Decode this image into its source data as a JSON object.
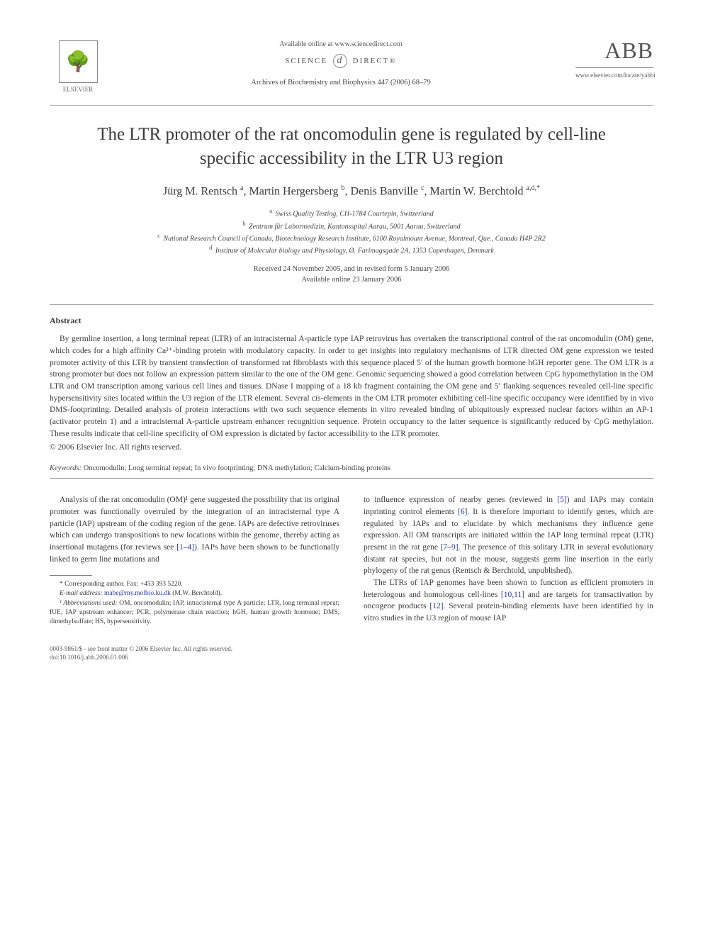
{
  "header": {
    "available_online": "Available online at www.sciencedirect.com",
    "science_direct_left": "SCIENCE",
    "science_direct_right": "DIRECT®",
    "journal_ref": "Archives of Biochemistry and Biophysics 447 (2006) 68–79",
    "elsevier_label": "ELSEVIER",
    "abb_label": "ABB",
    "locate_url": "www.elsevier.com/locate/yabbi"
  },
  "title": "The LTR promoter of the rat oncomodulin gene is regulated by cell-line specific accessibility in the LTR U3 region",
  "authors_html": "Jürg M. Rentsch <sup>a</sup>, Martin Hergersberg <sup>b</sup>, Denis Banville <sup>c</sup>, Martin W. Berchtold <sup>a,d,*</sup>",
  "affiliations": [
    {
      "sup": "a",
      "text": "Swiss Quality Testing, CH-1784 Courtepin, Switzerland"
    },
    {
      "sup": "b",
      "text": "Zentrum für Labormedizin, Kantonsspital Aarau, 5001 Aarau, Switzerland"
    },
    {
      "sup": "c",
      "text": "National Research Council of Canada, Biotechnology Research Institute, 6100 Royalmount Avenue, Montreal, Que., Canada H4P 2R2"
    },
    {
      "sup": "d",
      "text": "Institute of Molecular biology and Physiology, Ø. Farimagsgade 2A, 1353 Copenhagen, Denmark"
    }
  ],
  "dates": {
    "received": "Received 24 November 2005, and in revised form 5 January 2006",
    "online": "Available online 23 January 2006"
  },
  "abstract": {
    "heading": "Abstract",
    "body": "By germline insertion, a long terminal repeat (LTR) of an intracisternal A-particle type IAP retrovirus has overtaken the transcriptional control of the rat oncomodulin (OM) gene, which codes for a high affinity Ca²⁺-binding protein with modulatory capacity. In order to get insights into regulatory mechanisms of LTR directed OM gene expression we tested promoter activity of this LTR by transient transfection of transformed rat fibroblasts with this sequence placed 5′ of the human growth hormone hGH reporter gene. The OM LTR is a strong promoter but does not follow an expression pattern similar to the one of the OM gene. Genomic sequencing showed a good correlation between CpG hypomethylation in the OM LTR and OM transcription among various cell lines and tissues. DNase I mapping of a 18 kb fragment containing the OM gene and 5′ flanking sequences revealed cell-line specific hypersensitivity sites located within the U3 region of the LTR element. Several cis-elements in the OM LTR promoter exhibiting cell-line specific occupancy were identified by in vivo DMS-footprinting. Detailed analysis of protein interactions with two such sequence elements in vitro revealed binding of ubiquitously expressed nuclear factors within an AP-1 (activator protein 1) and a intracisternal A-particle upstream enhancer recognition sequence. Protein occupancy to the latter sequence is significantly reduced by CpG methylation. These results indicate that cell-line specificity of OM expression is dictated by factor accessibility to the LTR promoter.",
    "copyright": "© 2006 Elsevier Inc. All rights reserved."
  },
  "keywords": {
    "label": "Keywords:",
    "text": "Oncomodulin; Long terminal repeat; In vivo footprinting; DNA methylation; Calcium-binding proteins"
  },
  "body_left": {
    "p1_pre": "Analysis of the rat oncomodulin (OM)¹ gene suggested the possibility that its original promoter was functionally overruled by the integration of an intracisternal type A particle (IAP) upstream of the coding region of the gene. IAPs are defective retroviruses which can undergo transpositions to new locations within the genome, thereby acting as insertional mutagens (for reviews see ",
    "p1_ref": "[1–4]",
    "p1_post": "). IAPs have been shown to be functionally linked to germ line mutations and"
  },
  "body_right": {
    "p1_a": "to influence expression of nearby genes (reviewed in ",
    "p1_ref5": "[5]",
    "p1_b": ") and IAPs may contain inprinting control elements ",
    "p1_ref6": "[6]",
    "p1_c": ". It is therefore important to identify genes, which are regulated by IAPs and to elucidate by which mechanisms they influence gene expression. All OM transcripts are initiated within the IAP long terminal repeat (LTR) present in the rat gene ",
    "p1_ref79": "[7–9]",
    "p1_d": ". The presence of this solitary LTR in several evolutionary distant rat species, but not in the mouse, suggests germ line insertion in the early phylogeny of the rat genus (Rentsch & Berchtold, unpublished).",
    "p2_a": "The LTRs of IAP genomes have been shown to function as efficient promoters in heterologous and homologous cell-lines ",
    "p2_ref1011": "[10,11]",
    "p2_b": " and are targets for transactivation by oncogene products ",
    "p2_ref12": "[12]",
    "p2_c": ". Several protein-binding elements have been identified by in vitro studies in the U3 region of mouse IAP"
  },
  "footnotes": {
    "corr": "* Corresponding author. Fax: +453 393 5220.",
    "email_label": "E-mail address:",
    "email": "mabe@my.molbio.ku.dk",
    "email_who": "(M.W. Berchtold).",
    "abbr_label": "¹ Abbreviations used:",
    "abbr": "OM, oncomodulin; IAP, intracisternal type A particle; LTR, long terminal repeat; IUE, IAP upstream enhancer; PCR, polymerase chain reaction; hGH, human growth hormone; DMS, dimethylsulfate; HS, hypersensitivity."
  },
  "footer": {
    "line1": "0003-9861/$ - see front matter © 2006 Elsevier Inc. All rights reserved.",
    "line2": "doi:10.1016/j.abb.2006.01.006"
  },
  "colors": {
    "text": "#3a3a3a",
    "link": "#2a3aa8",
    "rule": "#888888"
  }
}
